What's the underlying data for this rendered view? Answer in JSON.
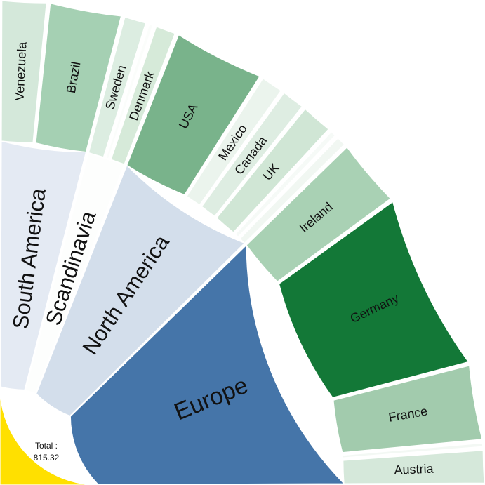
{
  "chart_data": {
    "type": "sunburst",
    "title": "",
    "center": {
      "label": "Total :",
      "value": "815.32",
      "color": "#ffe000"
    },
    "regions": [
      {
        "name": "South America",
        "color": "#e4eaf3",
        "children": [
          {
            "name": "Venezuela",
            "color": "#d4e8da",
            "values": 5.3
          },
          {
            "name": "Brazil",
            "color": "#a5d0b3",
            "values": 8.3
          }
        ]
      },
      {
        "name": "Scandinavia",
        "color": "#fdfefd",
        "children": [
          {
            "name": "Sweden",
            "color": "#dcede1",
            "values": 2.8
          },
          {
            "name": "",
            "color": "#fbfdfb",
            "values": 0.8
          },
          {
            "name": "Denmark",
            "color": "#d6ead9",
            "values": 2.6
          }
        ]
      },
      {
        "name": "North America",
        "color": "#d3deeb",
        "children": [
          {
            "name": "USA",
            "color": "#79b38b",
            "values": 10.4
          },
          {
            "name": "Mexico",
            "color": "#ebf4ed",
            "values": 2.8
          },
          {
            "name": "Canada",
            "color": "#deede2",
            "values": 2.9
          },
          {
            "name": "UK",
            "color": "#d0e6d5",
            "values": 3.8
          },
          {
            "name": "",
            "color": "#f6faf7",
            "values": 1.0
          },
          {
            "name": "",
            "color": "#f1f7f2",
            "values": 1.4
          }
        ]
      },
      {
        "name": "Europe",
        "color": "#4575a9",
        "children": [
          {
            "name": "Ireland",
            "color": "#a9d1b4",
            "values": 7.8
          },
          {
            "name": "Germany",
            "color": "#137837",
            "values": 19.9
          },
          {
            "name": "France",
            "color": "#a2cbad",
            "values": 8.6
          },
          {
            "name": "",
            "color": "#f3f8f4",
            "values": 0.8
          },
          {
            "name": "Austria",
            "color": "#d5e8da",
            "values": 4.0
          }
        ]
      }
    ]
  }
}
